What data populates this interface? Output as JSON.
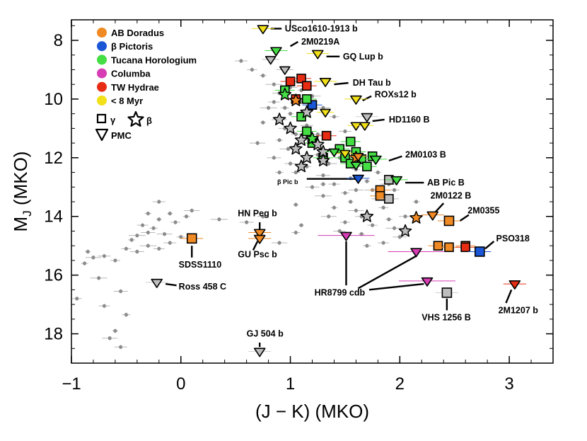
{
  "chart_data": {
    "type": "scatter",
    "title": "",
    "xlabel": "(J − K) (MKO)",
    "ylabel_main": "M",
    "ylabel_sub": "J",
    "ylabel_rest": " (MKO)",
    "xlim": [
      -1.0,
      3.4
    ],
    "ylim": [
      19.0,
      7.3
    ],
    "x_ticks": [
      {
        "value": -1,
        "label": "−1"
      },
      {
        "value": 0,
        "label": "0"
      },
      {
        "value": 1,
        "label": "1"
      },
      {
        "value": 2,
        "label": "2"
      },
      {
        "value": 3,
        "label": "3"
      }
    ],
    "y_ticks": [
      {
        "value": 8,
        "label": "8"
      },
      {
        "value": 10,
        "label": "10"
      },
      {
        "value": 12,
        "label": "12"
      },
      {
        "value": 14,
        "label": "14"
      },
      {
        "value": 16,
        "label": "16"
      },
      {
        "value": 18,
        "label": "18"
      }
    ],
    "colors": {
      "field": "#8c8c8c",
      "ab_doradus": "#f08a24",
      "beta_pictoris": "#1a56d6",
      "tucana_horologium": "#44dd44",
      "columba": "#d63cb4",
      "tw_hydrae": "#e82c14",
      "young_8myr": "#f2e018",
      "gray_marker": "#bdbdbd"
    },
    "legend": [
      {
        "name": "AB Doradus",
        "color": "#f08a24"
      },
      {
        "name": "β Pictoris",
        "color": "#1a56d6"
      },
      {
        "name": "Tucana Horologium",
        "color": "#44dd44"
      },
      {
        "name": "Columba",
        "color": "#d63cb4"
      },
      {
        "name": "TW Hydrae",
        "color": "#e82c14"
      },
      {
        "name": "< 8 Myr",
        "color": "#f2e018"
      }
    ],
    "legend_symbols": {
      "gamma": "γ",
      "beta": "β",
      "pmc": "PMC"
    },
    "field_points": [
      [
        -0.85,
        15.2
      ],
      [
        -0.8,
        15.4
      ],
      [
        -0.7,
        15.35
      ],
      [
        -0.6,
        15.5
      ],
      [
        -0.88,
        15.6
      ],
      [
        -0.75,
        16.1
      ],
      [
        -0.55,
        16.55
      ],
      [
        -0.7,
        17.05
      ],
      [
        -0.5,
        17.35
      ],
      [
        -0.6,
        17.9
      ],
      [
        -0.65,
        18.15
      ],
      [
        -0.55,
        18.45
      ],
      [
        -0.95,
        16.8
      ],
      [
        -0.45,
        14.8
      ],
      [
        -0.4,
        14.65
      ],
      [
        -0.3,
        14.55
      ],
      [
        -0.35,
        14.3
      ],
      [
        -0.25,
        14.4
      ],
      [
        -0.2,
        14.1
      ],
      [
        -0.15,
        14.6
      ],
      [
        -0.1,
        14.9
      ],
      [
        -0.05,
        14.2
      ],
      [
        0.05,
        14.0
      ],
      [
        -0.3,
        15.0
      ],
      [
        -0.4,
        15.2
      ],
      [
        -0.2,
        15.1
      ],
      [
        0.0,
        14.7
      ],
      [
        -0.1,
        13.9
      ],
      [
        0.1,
        13.8
      ],
      [
        -0.2,
        13.5
      ],
      [
        -0.5,
        15.1
      ],
      [
        -0.3,
        13.9
      ],
      [
        0.35,
        14.1
      ],
      [
        0.6,
        14.2
      ],
      [
        0.75,
        14.0
      ],
      [
        1.05,
        14.55
      ],
      [
        1.1,
        14.3
      ],
      [
        0.9,
        14.9
      ],
      [
        0.55,
        8.7
      ],
      [
        0.65,
        9.0
      ],
      [
        0.75,
        9.2
      ],
      [
        0.85,
        9.5
      ],
      [
        0.9,
        9.8
      ],
      [
        0.85,
        10.1
      ],
      [
        0.95,
        10.3
      ],
      [
        1.0,
        10.5
      ],
      [
        0.9,
        10.7
      ],
      [
        0.95,
        11.0
      ],
      [
        1.05,
        11.2
      ],
      [
        0.9,
        11.4
      ],
      [
        0.98,
        11.7
      ],
      [
        0.85,
        12.0
      ],
      [
        1.0,
        12.2
      ],
      [
        1.05,
        12.5
      ],
      [
        0.75,
        10.8
      ],
      [
        0.7,
        11.5
      ],
      [
        1.15,
        10.9
      ],
      [
        1.2,
        11.5
      ],
      [
        1.25,
        11.9
      ],
      [
        1.35,
        12.2
      ],
      [
        1.3,
        12.6
      ],
      [
        1.4,
        12.9
      ],
      [
        1.5,
        13.2
      ],
      [
        1.55,
        13.5
      ],
      [
        1.6,
        13.8
      ],
      [
        1.65,
        14.0
      ],
      [
        1.5,
        14.2
      ],
      [
        1.4,
        13.7
      ],
      [
        1.3,
        13.3
      ],
      [
        1.2,
        13.0
      ],
      [
        1.45,
        12.0
      ],
      [
        1.6,
        12.4
      ],
      [
        1.7,
        12.8
      ],
      [
        1.75,
        13.1
      ],
      [
        1.8,
        13.4
      ],
      [
        1.85,
        13.7
      ],
      [
        1.9,
        14.1
      ],
      [
        1.95,
        14.4
      ],
      [
        2.0,
        14.7
      ],
      [
        1.85,
        14.9
      ],
      [
        1.7,
        15.0
      ],
      [
        1.65,
        14.6
      ],
      [
        1.55,
        12.7
      ],
      [
        1.5,
        11.1
      ],
      [
        1.4,
        10.6
      ],
      [
        1.1,
        9.7
      ],
      [
        1.2,
        9.9
      ],
      [
        1.3,
        10.3
      ],
      [
        1.25,
        11.2
      ],
      [
        1.15,
        12.3
      ],
      [
        1.3,
        12.9
      ],
      [
        1.6,
        13.1
      ],
      [
        2.05,
        14.0
      ],
      [
        1.95,
        13.1
      ],
      [
        2.15,
        13.5
      ],
      [
        0.8,
        10.3
      ],
      [
        1.0,
        9.6
      ],
      [
        1.1,
        10.1
      ],
      [
        0.9,
        12.5
      ],
      [
        1.05,
        13.6
      ],
      [
        1.35,
        14.0
      ],
      [
        1.45,
        14.5
      ],
      [
        1.75,
        14.3
      ],
      [
        1.8,
        12.5
      ],
      [
        1.9,
        12.9
      ]
    ],
    "objects": [
      {
        "name": "USco1610-1913 b",
        "x": 0.75,
        "y": 7.6,
        "marker": "pmc",
        "color": "#f2e018"
      },
      {
        "name": "2M0219A",
        "x": 0.87,
        "y": 8.35,
        "marker": "pmc",
        "color": "#44dd44"
      },
      {
        "name": "GQ Lup b",
        "x": 1.25,
        "y": 8.45,
        "marker": "pmc",
        "color": "#f2e018"
      },
      {
        "name": "DH Tau b",
        "x": 1.32,
        "y": 9.4,
        "marker": "pmc",
        "color": "#f2e018"
      },
      {
        "name": "ROXs12 b",
        "x": 1.6,
        "y": 10.0,
        "marker": "pmc",
        "color": "#f2e018"
      },
      {
        "name": "HD1160 B",
        "x": 1.7,
        "y": 10.6,
        "marker": "pmc",
        "color": "#bdbdbd"
      },
      {
        "name": "2M0103 B",
        "x": 1.78,
        "y": 12.05,
        "marker": "pmc",
        "color": "#44dd44"
      },
      {
        "name": "β Pic b",
        "x": 1.62,
        "y": 12.7,
        "marker": "pmc",
        "color": "#1a56d6"
      },
      {
        "name": "AB Pic B",
        "x": 1.97,
        "y": 12.75,
        "marker": "pmc",
        "color": "#44dd44"
      },
      {
        "name": "2M0122 B",
        "x": 2.3,
        "y": 13.95,
        "marker": "pmc",
        "color": "#f08a24"
      },
      {
        "name": "2M0355",
        "x": 2.45,
        "y": 14.15,
        "marker": "square",
        "color": "#f08a24"
      },
      {
        "name": "PSO318",
        "x": 2.73,
        "y": 15.2,
        "marker": "square",
        "color": "#1a56d6"
      },
      {
        "name": "HN Peg b",
        "x": 0.72,
        "y": 14.55,
        "marker": "pmc",
        "color": "#f08a24"
      },
      {
        "name": "GU Psc b",
        "x": 0.72,
        "y": 14.75,
        "marker": "pmc",
        "color": "#f08a24"
      },
      {
        "name": "SDSS1110",
        "x": 0.1,
        "y": 14.75,
        "marker": "square",
        "color": "#f08a24"
      },
      {
        "name": "Ross 458 C",
        "x": -0.22,
        "y": 16.25,
        "marker": "pmc",
        "color": "#bdbdbd"
      },
      {
        "name": "HR8799 cdb",
        "x": 1.51,
        "y": 14.65,
        "marker": "pmc",
        "color": "#d63cb4"
      },
      {
        "name": "HR8799 cdb",
        "x": 2.15,
        "y": 15.2,
        "marker": "pmc",
        "color": "#d63cb4"
      },
      {
        "name": "HR8799 cdb",
        "x": 2.25,
        "y": 16.2,
        "marker": "pmc",
        "color": "#d63cb4"
      },
      {
        "name": "VHS 1256 B",
        "x": 2.43,
        "y": 16.6,
        "marker": "square",
        "color": "#bdbdbd"
      },
      {
        "name": "2M1207 b",
        "x": 3.05,
        "y": 16.3,
        "marker": "pmc",
        "color": "#e82c14"
      },
      {
        "name": "GJ 504 b",
        "x": 0.72,
        "y": 18.6,
        "marker": "pmc",
        "color": "#bdbdbd"
      }
    ],
    "squares": [
      {
        "x": 0.95,
        "y": 9.7,
        "color": "#44dd44"
      },
      {
        "x": 1.0,
        "y": 9.4,
        "color": "#e82c14"
      },
      {
        "x": 1.1,
        "y": 9.3,
        "color": "#e82c14"
      },
      {
        "x": 1.15,
        "y": 9.55,
        "color": "#e82c14"
      },
      {
        "x": 1.05,
        "y": 10.0,
        "color": "#e82c14"
      },
      {
        "x": 1.2,
        "y": 10.2,
        "color": "#1a56d6"
      },
      {
        "x": 1.15,
        "y": 10.0,
        "color": "#44dd44"
      },
      {
        "x": 1.1,
        "y": 10.6,
        "color": "#44dd44"
      },
      {
        "x": 1.15,
        "y": 11.1,
        "color": "#44dd44"
      },
      {
        "x": 1.2,
        "y": 11.5,
        "color": "#44dd44"
      },
      {
        "x": 1.33,
        "y": 11.25,
        "color": "#e82c14"
      },
      {
        "x": 1.3,
        "y": 12.0,
        "color": "#44dd44"
      },
      {
        "x": 1.45,
        "y": 11.7,
        "color": "#44dd44"
      },
      {
        "x": 1.55,
        "y": 11.45,
        "color": "#44dd44"
      },
      {
        "x": 1.5,
        "y": 12.0,
        "color": "#44dd44"
      },
      {
        "x": 1.6,
        "y": 11.8,
        "color": "#44dd44"
      },
      {
        "x": 1.55,
        "y": 12.2,
        "color": "#44dd44"
      },
      {
        "x": 1.65,
        "y": 12.05,
        "color": "#44dd44"
      },
      {
        "x": 1.7,
        "y": 12.3,
        "color": "#44dd44"
      },
      {
        "x": 1.75,
        "y": 11.95,
        "color": "#44dd44"
      },
      {
        "x": 1.9,
        "y": 12.75,
        "color": "#bdbdbd"
      },
      {
        "x": 1.82,
        "y": 13.1,
        "color": "#f08a24"
      },
      {
        "x": 1.82,
        "y": 13.3,
        "color": "#f08a24"
      },
      {
        "x": 1.9,
        "y": 13.4,
        "color": "#bdbdbd"
      },
      {
        "x": 2.35,
        "y": 15.0,
        "color": "#f08a24"
      },
      {
        "x": 2.45,
        "y": 15.05,
        "color": "#f08a24"
      },
      {
        "x": 2.6,
        "y": 15.0,
        "color": "#f08a24"
      },
      {
        "x": 2.6,
        "y": 15.05,
        "color": "#e82c14"
      }
    ],
    "stars": [
      {
        "x": 0.95,
        "y": 9.85,
        "color": "#44dd44"
      },
      {
        "x": 1.05,
        "y": 10.05,
        "color": "#f08a24"
      },
      {
        "x": 1.15,
        "y": 10.45,
        "color": "#bdbdbd"
      },
      {
        "x": 0.9,
        "y": 10.7,
        "color": "#bdbdbd"
      },
      {
        "x": 1.0,
        "y": 11.0,
        "color": "#bdbdbd"
      },
      {
        "x": 1.1,
        "y": 11.4,
        "color": "#bdbdbd"
      },
      {
        "x": 1.2,
        "y": 11.35,
        "color": "#44dd44"
      },
      {
        "x": 1.05,
        "y": 11.7,
        "color": "#bdbdbd"
      },
      {
        "x": 1.15,
        "y": 12.0,
        "color": "#bdbdbd"
      },
      {
        "x": 1.1,
        "y": 12.3,
        "color": "#bdbdbd"
      },
      {
        "x": 1.3,
        "y": 11.8,
        "color": "#bdbdbd"
      },
      {
        "x": 1.3,
        "y": 12.1,
        "color": "#bdbdbd"
      },
      {
        "x": 1.25,
        "y": 11.55,
        "color": "#bdbdbd"
      },
      {
        "x": 1.6,
        "y": 12.0,
        "color": "#f08a24"
      },
      {
        "x": 1.7,
        "y": 14.0,
        "color": "#bdbdbd"
      },
      {
        "x": 2.05,
        "y": 14.5,
        "color": "#bdbdbd"
      },
      {
        "x": 2.15,
        "y": 14.05,
        "color": "#f08a24"
      }
    ],
    "extra_triangles": [
      {
        "x": 0.82,
        "y": 8.65,
        "color": "#bdbdbd"
      },
      {
        "x": 0.95,
        "y": 9.0,
        "color": "#bdbdbd"
      },
      {
        "x": 1.32,
        "y": 10.45,
        "color": "#f2e018"
      },
      {
        "x": 1.6,
        "y": 10.9,
        "color": "#f2e018"
      },
      {
        "x": 1.68,
        "y": 10.9,
        "color": "#f2e018"
      },
      {
        "x": 1.4,
        "y": 11.8,
        "color": "#44dd44"
      },
      {
        "x": 1.5,
        "y": 11.85,
        "color": "#f2e018"
      },
      {
        "x": 1.62,
        "y": 11.95,
        "color": "#f08a24"
      },
      {
        "x": 1.6,
        "y": 12.25,
        "color": "#44dd44"
      }
    ],
    "annotations": [
      {
        "text": "USco1610-1913 b",
        "x": 0.95,
        "y": 7.6
      },
      {
        "text": "2M0219A",
        "x": 1.1,
        "y": 8.05
      },
      {
        "text": "GQ Lup b",
        "x": 1.48,
        "y": 8.55
      },
      {
        "text": "DH Tau b",
        "x": 1.57,
        "y": 9.45
      },
      {
        "text": "ROXs12 b",
        "x": 1.77,
        "y": 9.85
      },
      {
        "text": "HD1160 B",
        "x": 1.9,
        "y": 10.7
      },
      {
        "text": "2M0103 B",
        "x": 2.05,
        "y": 11.9
      },
      {
        "text": "β Pic b",
        "x": 0.88,
        "y": 12.8
      },
      {
        "text": "AB Pic B",
        "x": 2.25,
        "y": 12.85
      },
      {
        "text": "2M0122 B",
        "x": 2.28,
        "y": 13.3
      },
      {
        "text": "2M0355",
        "x": 2.62,
        "y": 13.8
      },
      {
        "text": "PSO318",
        "x": 2.88,
        "y": 14.75
      },
      {
        "text": "HN Peg b",
        "x": 0.52,
        "y": 13.9
      },
      {
        "text": "GU Psc b",
        "x": 0.52,
        "y": 15.3
      },
      {
        "text": "SDSS1110",
        "x": -0.02,
        "y": 15.65
      },
      {
        "text": "Ross 458 C",
        "x": -0.02,
        "y": 16.4
      },
      {
        "text": "HR8799 cdb",
        "x": 1.22,
        "y": 16.6
      },
      {
        "text": "VHS 1256 B",
        "x": 2.2,
        "y": 17.45
      },
      {
        "text": "2M1207 b",
        "x": 2.9,
        "y": 17.2
      },
      {
        "text": "GJ 504 b",
        "x": 0.6,
        "y": 18.0
      }
    ]
  }
}
